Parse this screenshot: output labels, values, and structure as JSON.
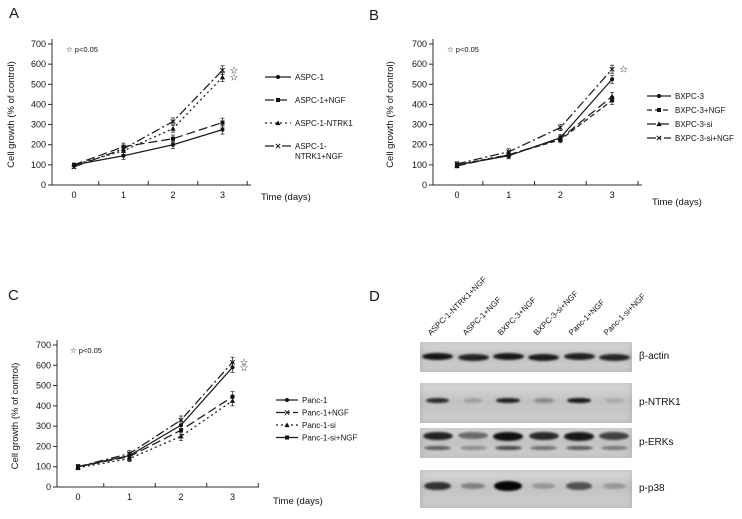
{
  "star_glyph": "☆",
  "panels": [
    {
      "letter": "A"
    },
    {
      "letter": "B"
    },
    {
      "letter": "C"
    },
    {
      "letter": "D"
    }
  ],
  "chart_data": [
    {
      "type": "line",
      "panel": "A",
      "ylabel": "Cell growth (% of control)",
      "xlabel": "Time (days)",
      "annotation": "☆ p<0.05",
      "x": [
        0,
        1,
        2,
        3
      ],
      "ylim": [
        0,
        700
      ],
      "yticks": [
        0,
        100,
        200,
        300,
        400,
        500,
        600,
        700
      ],
      "err": [
        8,
        18,
        18,
        22
      ],
      "series": [
        {
          "name": "ASPC-1",
          "values": [
            100,
            145,
            200,
            275
          ],
          "line": "solid",
          "marker": "circle",
          "significant": false,
          "legend_lines": [
            "ASPC-1"
          ]
        },
        {
          "name": "ASPC-1+NGF",
          "values": [
            100,
            190,
            230,
            310
          ],
          "line": "dash",
          "marker": "square",
          "significant": false,
          "legend_lines": [
            "ASPC-1+NGF"
          ]
        },
        {
          "name": "ASPC-1-NTRK1",
          "values": [
            100,
            170,
            280,
            535
          ],
          "line": "dot",
          "marker": "triangle",
          "significant": true,
          "legend_lines": [
            "ASPC-1-NTRK1"
          ]
        },
        {
          "name": "ASPC-1-NTRK1+NGF",
          "values": [
            90,
            180,
            315,
            570
          ],
          "line": "dashdot",
          "marker": "x",
          "significant": true,
          "legend_lines": [
            "ASPC-1-",
            "NTRK1+NGF"
          ]
        }
      ]
    },
    {
      "type": "line",
      "panel": "B",
      "ylabel": "Cell growth (% of control)",
      "xlabel": "Time (days)",
      "annotation": "☆ p<0.05",
      "x": [
        0,
        1,
        2,
        3
      ],
      "ylim": [
        0,
        700
      ],
      "yticks": [
        0,
        100,
        200,
        300,
        400,
        500,
        600,
        700
      ],
      "err": [
        10,
        15,
        15,
        20
      ],
      "series": [
        {
          "name": "BXPC-3",
          "values": [
            100,
            145,
            235,
            525
          ],
          "line": "solid",
          "marker": "circle",
          "significant": false,
          "legend_lines": [
            "BXPC-3"
          ]
        },
        {
          "name": "BXPC-3+NGF",
          "values": [
            100,
            150,
            225,
            420
          ],
          "line": "shortdash",
          "marker": "square",
          "significant": false,
          "legend_lines": [
            "BXPC-3+NGF"
          ]
        },
        {
          "name": "BXPC-3-si",
          "values": [
            95,
            150,
            230,
            440
          ],
          "line": "dash",
          "marker": "triangle",
          "significant": false,
          "legend_lines": [
            "BXPC-3-si"
          ]
        },
        {
          "name": "BXPC-3-si+NGF",
          "values": [
            105,
            165,
            285,
            575
          ],
          "line": "dashdot",
          "marker": "x",
          "significant": true,
          "legend_lines": [
            "BXPC-3-si+NGF"
          ]
        }
      ]
    },
    {
      "type": "line",
      "panel": "C",
      "ylabel": "Cell growth (% of control)",
      "xlabel": "Time (days)",
      "annotation": "☆ p<0.05",
      "x": [
        0,
        1,
        2,
        3
      ],
      "ylim": [
        0,
        700
      ],
      "yticks": [
        0,
        100,
        200,
        300,
        400,
        500,
        600,
        700
      ],
      "err": [
        10,
        15,
        20,
        25
      ],
      "series": [
        {
          "name": "Panc-1",
          "values": [
            100,
            155,
            305,
            590
          ],
          "line": "solid",
          "marker": "circle",
          "significant": true,
          "legend_lines": [
            "Panc-1"
          ]
        },
        {
          "name": "Panc-1+NGF",
          "values": [
            100,
            165,
            330,
            615
          ],
          "line": "dashdot",
          "marker": "x",
          "significant": true,
          "legend_lines": [
            "Panc-1+NGF"
          ]
        },
        {
          "name": "Panc-1-si",
          "values": [
            95,
            140,
            250,
            425
          ],
          "line": "dot",
          "marker": "triangle",
          "significant": false,
          "legend_lines": [
            "Panc-1-si"
          ]
        },
        {
          "name": "Panc-1-si+NGF",
          "values": [
            100,
            150,
            280,
            445
          ],
          "line": "dash",
          "marker": "square",
          "significant": false,
          "legend_lines": [
            "Panc-1-si+NGF"
          ]
        }
      ]
    }
  ],
  "blot": {
    "panel": "D",
    "lane_labels": [
      "ASPC-1-NTRK1+NGF",
      "ASPC-1+NGF",
      "BXPC-3+NGF",
      "BXPC-3-si+NGF",
      "Panc-1+NGF",
      "Panc-1-si+NGF"
    ],
    "rows": [
      {
        "label": "β-actin",
        "pattern": "single",
        "intensities": [
          0.92,
          0.85,
          0.9,
          0.88,
          0.86,
          0.82
        ]
      },
      {
        "label": "p-NTRK1",
        "pattern": "single",
        "intensities": [
          0.8,
          0.18,
          0.85,
          0.3,
          0.9,
          0.12
        ]
      },
      {
        "label": "p-ERKs",
        "pattern": "doublet",
        "intensities": [
          0.85,
          0.5,
          0.95,
          0.82,
          0.9,
          0.7
        ],
        "intensities_lower": [
          0.55,
          0.3,
          0.65,
          0.45,
          0.55,
          0.4
        ]
      },
      {
        "label": "p-p38",
        "pattern": "single",
        "intensities": [
          0.72,
          0.3,
          0.95,
          0.18,
          0.55,
          0.18
        ]
      }
    ]
  }
}
